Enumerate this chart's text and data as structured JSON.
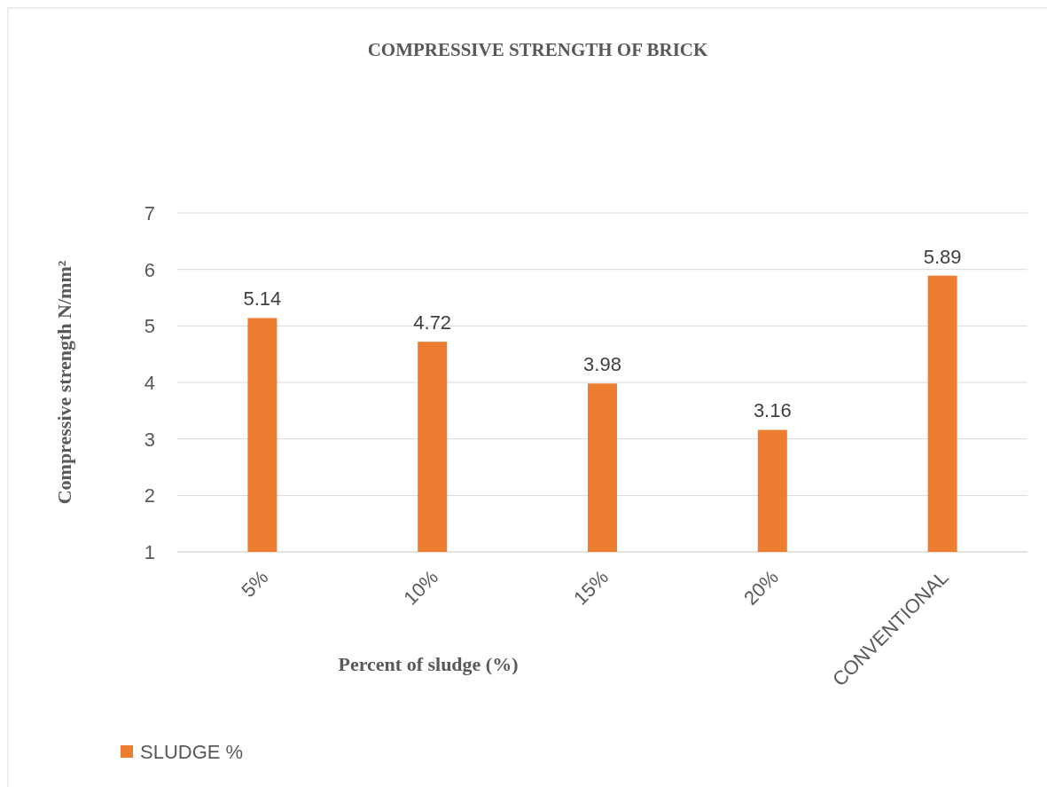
{
  "chart_data": {
    "type": "bar",
    "title": "COMPRESSIVE STRENGTH OF BRICK",
    "xlabel": "Percent of sludge (%)",
    "ylabel": "Compressive strength  N/mm²",
    "categories": [
      "5%",
      "10%",
      "15%",
      "20%",
      "CONVENTIONAL"
    ],
    "series": [
      {
        "name": "SLUDGE %",
        "color": "#ed7d31",
        "values": [
          5.14,
          4.72,
          3.98,
          3.16,
          5.89
        ]
      }
    ],
    "ylim": [
      1,
      7
    ],
    "yticks": [
      1,
      2,
      3,
      4,
      5,
      6,
      7
    ],
    "grid": "y",
    "legend": "bottom left",
    "data_labels": true
  }
}
